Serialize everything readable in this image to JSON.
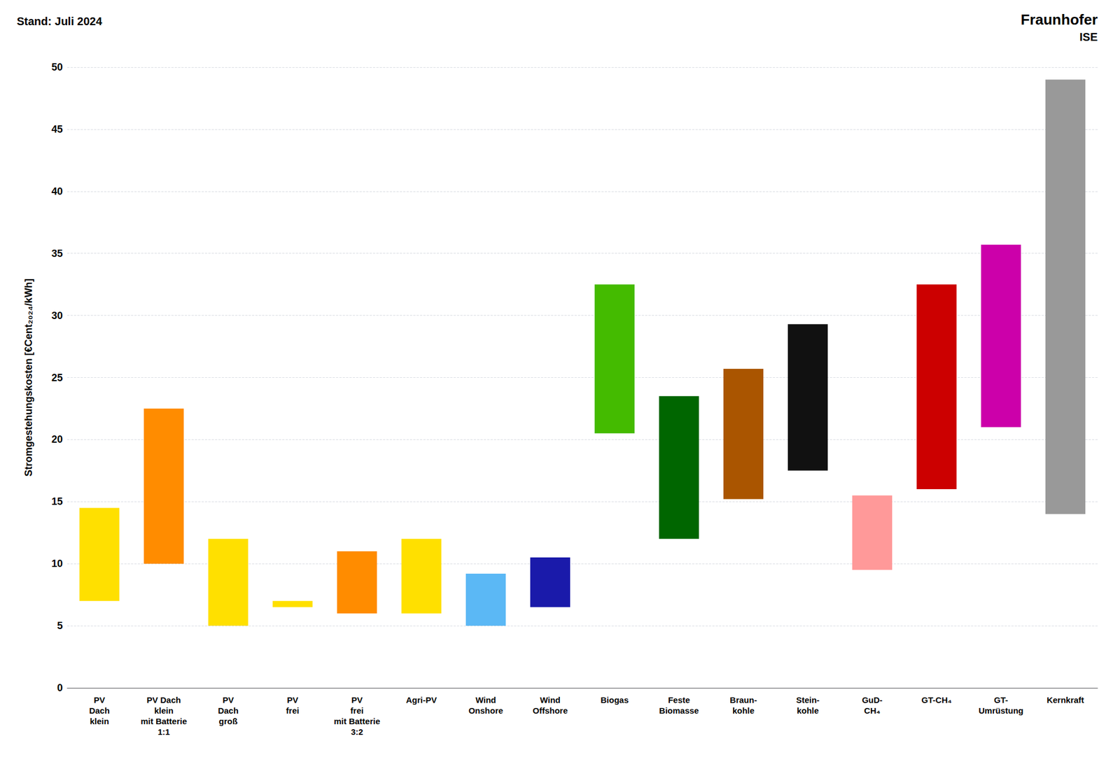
{
  "chart_data": {
    "type": "bar",
    "ylabel": "Stromgestehungskosten [€Cent₂₀₂₄/kWh]",
    "annotations": [
      "Stand: Juli 2024",
      "Fraunhofer",
      "ISE"
    ],
    "categories": [
      "PV\nDach\nklein",
      "PV Dach\nklein\nmit Batterie\n1:1",
      "PV\nDach\ngroß",
      "PV\nfrei",
      "PV\nfrei\nmit Batterie\n3:2",
      "Agri-PV",
      "Wind\nOnshore",
      "Wind\nOffshore",
      "Biogas",
      "Feste\nBiomasse",
      "Braun-\nkohle",
      "Stein-\nkohle",
      "GuD-\nCH₄",
      "GT-CH₄",
      "GT-\nUmrüstung",
      "Kernkraft"
    ],
    "values": [
      [
        7.0,
        14.5
      ],
      [
        10.0,
        22.5
      ],
      [
        5.0,
        12.0
      ],
      [
        6.5,
        7.0
      ],
      [
        6.0,
        11.0
      ],
      [
        6.0,
        12.0
      ],
      [
        5.0,
        9.2
      ],
      [
        6.5,
        10.5
      ],
      [
        20.5,
        32.5
      ],
      [
        12.0,
        23.5
      ],
      [
        15.2,
        25.7
      ],
      [
        17.5,
        29.3
      ],
      [
        9.5,
        15.5
      ],
      [
        16.0,
        32.5
      ],
      [
        21.0,
        35.7
      ],
      [
        14.0,
        49.0
      ]
    ],
    "colors": [
      "#ffe000",
      "#ff8c00",
      "#ffe000",
      "#ffe000",
      "#ff8c00",
      "#ffe000",
      "#5bb8f5",
      "#1a1aaa",
      "#44bb00",
      "#006600",
      "#aa5500",
      "#111111",
      "#ff9999",
      "#cc0000",
      "#cc00aa",
      "#999999"
    ],
    "ylim": [
      0,
      50
    ],
    "yticks": [
      0,
      5,
      10,
      15,
      20,
      25,
      30,
      35,
      40,
      45,
      50
    ],
    "grid": true
  }
}
